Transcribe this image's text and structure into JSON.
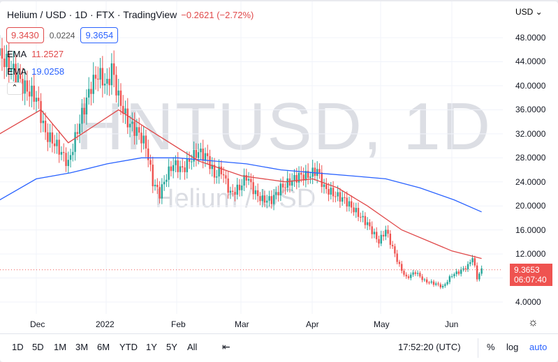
{
  "header": {
    "title": "Helium / USD · 1D · FTX · TradingView",
    "change": "−0.2621 (−2.72%)",
    "bid": "9.3430",
    "spread": "0.0224",
    "ask": "9.3654"
  },
  "indicators": [
    {
      "name": "EMA",
      "value": "11.2527",
      "color": "#e0494a"
    },
    {
      "name": "EMA",
      "value": "19.0258",
      "color": "#2962ff"
    }
  ],
  "watermark": {
    "symbol": "HNTUSD, 1D",
    "name": "Helium / USD"
  },
  "price_axis": {
    "currency": "USD",
    "ticks": [
      "48.0000",
      "44.0000",
      "40.0000",
      "36.0000",
      "32.0000",
      "28.0000",
      "24.0000",
      "20.0000",
      "16.0000",
      "12.0000",
      "4.0000"
    ],
    "last_price": "9.3653",
    "countdown": "06:07:40",
    "last_color": "#ef5350"
  },
  "time_axis": [
    "Dec",
    "2022",
    "Feb",
    "Mar",
    "Apr",
    "May",
    "Jun"
  ],
  "toolbar": {
    "ranges": [
      "1D",
      "5D",
      "1M",
      "3M",
      "6M",
      "YTD",
      "1Y",
      "5Y",
      "All"
    ],
    "clock": "17:52:20 (UTC)",
    "percent": "%",
    "log": "log",
    "auto": "auto"
  },
  "colors": {
    "up": "#26a69a",
    "down": "#ef5350",
    "ema_fast": "#e0494a",
    "ema_slow": "#2962ff"
  },
  "chart_data": {
    "type": "candlestick",
    "ylim": [
      2,
      50
    ],
    "closes": [
      [
        "2021-11-15",
        45
      ],
      [
        "2021-11-20",
        43
      ],
      [
        "2021-11-25",
        40
      ],
      [
        "2021-12-01",
        38
      ],
      [
        "2021-12-05",
        32
      ],
      [
        "2021-12-10",
        30
      ],
      [
        "2021-12-15",
        27
      ],
      [
        "2021-12-20",
        34
      ],
      [
        "2021-12-25",
        40
      ],
      [
        "2021-12-28",
        42
      ],
      [
        "2022-01-01",
        40
      ],
      [
        "2022-01-03",
        43
      ],
      [
        "2022-01-06",
        38
      ],
      [
        "2022-01-10",
        34
      ],
      [
        "2022-01-15",
        32
      ],
      [
        "2022-01-18",
        30
      ],
      [
        "2022-01-21",
        24
      ],
      [
        "2022-01-24",
        22
      ],
      [
        "2022-01-27",
        25
      ],
      [
        "2022-01-30",
        27
      ],
      [
        "2022-02-03",
        26
      ],
      [
        "2022-02-07",
        28
      ],
      [
        "2022-02-10",
        29
      ],
      [
        "2022-02-14",
        28
      ],
      [
        "2022-02-17",
        25
      ],
      [
        "2022-02-20",
        26
      ],
      [
        "2022-02-24",
        22
      ],
      [
        "2022-02-28",
        23
      ],
      [
        "2022-03-03",
        25
      ],
      [
        "2022-03-07",
        22
      ],
      [
        "2022-03-10",
        21
      ],
      [
        "2022-03-14",
        21
      ],
      [
        "2022-03-18",
        23
      ],
      [
        "2022-03-22",
        24
      ],
      [
        "2022-03-26",
        25
      ],
      [
        "2022-03-30",
        25
      ],
      [
        "2022-04-03",
        26
      ],
      [
        "2022-04-06",
        23
      ],
      [
        "2022-04-10",
        22
      ],
      [
        "2022-04-15",
        21
      ],
      [
        "2022-04-20",
        19
      ],
      [
        "2022-04-25",
        17
      ],
      [
        "2022-04-30",
        14
      ],
      [
        "2022-05-03",
        16
      ],
      [
        "2022-05-06",
        13
      ],
      [
        "2022-05-09",
        10
      ],
      [
        "2022-05-12",
        8
      ],
      [
        "2022-05-16",
        9
      ],
      [
        "2022-05-20",
        7.5
      ],
      [
        "2022-05-25",
        7
      ],
      [
        "2022-05-28",
        6.5
      ],
      [
        "2022-06-01",
        8.5
      ],
      [
        "2022-06-04",
        9
      ],
      [
        "2022-06-08",
        10
      ],
      [
        "2022-06-10",
        11.5
      ],
      [
        "2022-06-12",
        8
      ],
      [
        "2022-06-14",
        9.37
      ]
    ],
    "ema_fast": [
      [
        "2021-11-15",
        32
      ],
      [
        "2021-12-03",
        36
      ],
      [
        "2021-12-15",
        30.5
      ],
      [
        "2022-01-06",
        36
      ],
      [
        "2022-01-18",
        33
      ],
      [
        "2022-02-10",
        27.5
      ],
      [
        "2022-03-01",
        25
      ],
      [
        "2022-03-20",
        24
      ],
      [
        "2022-04-01",
        24.5
      ],
      [
        "2022-04-12",
        23
      ],
      [
        "2022-04-25",
        20
      ],
      [
        "2022-05-10",
        16
      ],
      [
        "2022-06-01",
        12.5
      ],
      [
        "2022-06-14",
        11.25
      ]
    ],
    "ema_slow": [
      [
        "2021-11-15",
        21
      ],
      [
        "2021-12-01",
        24.5
      ],
      [
        "2021-12-16",
        25.5
      ],
      [
        "2022-01-01",
        27
      ],
      [
        "2022-01-16",
        28
      ],
      [
        "2022-02-01",
        28
      ],
      [
        "2022-02-16",
        27.5
      ],
      [
        "2022-03-03",
        27
      ],
      [
        "2022-03-18",
        26
      ],
      [
        "2022-04-02",
        25.5
      ],
      [
        "2022-04-18",
        25
      ],
      [
        "2022-05-03",
        24.5
      ],
      [
        "2022-05-18",
        23
      ],
      [
        "2022-06-02",
        21
      ],
      [
        "2022-06-14",
        19
      ]
    ]
  }
}
